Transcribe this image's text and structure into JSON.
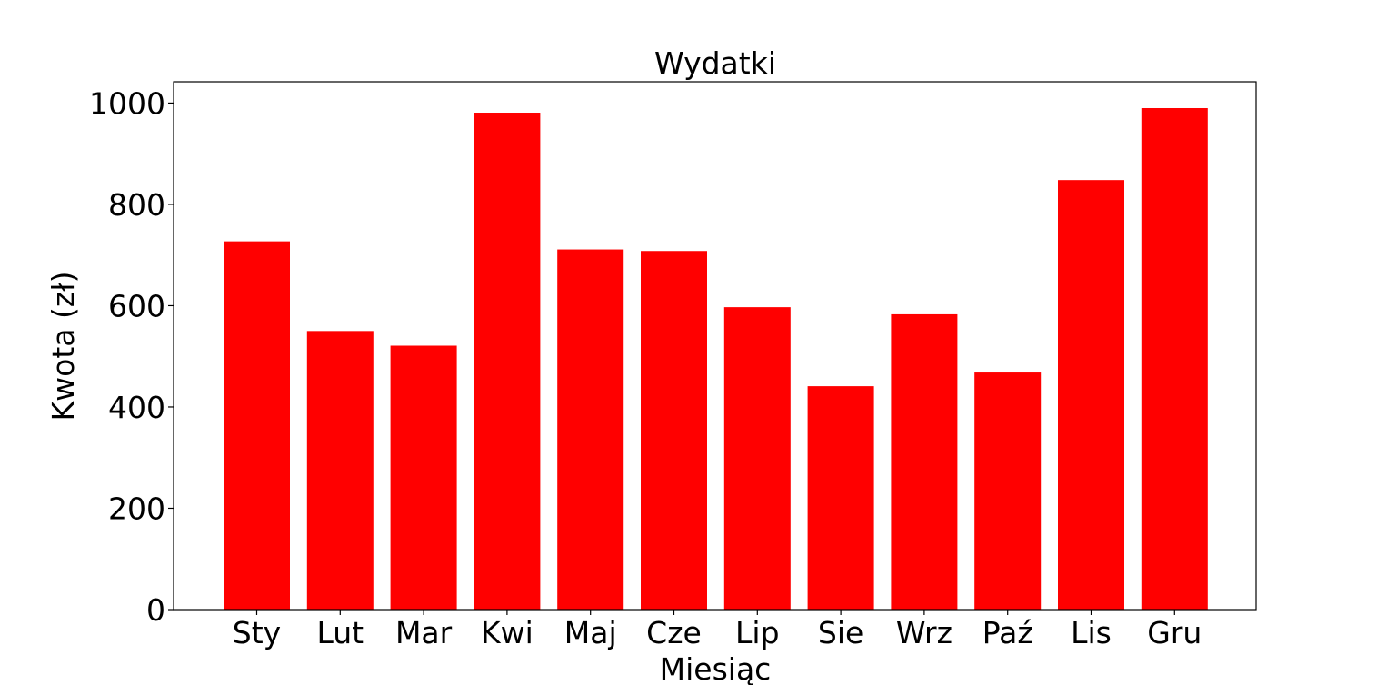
{
  "chart_data": {
    "type": "bar",
    "title": "Wydatki",
    "xlabel": "Miesiąc",
    "ylabel": "Kwota (zł)",
    "categories": [
      "Sty",
      "Lut",
      "Mar",
      "Kwi",
      "Maj",
      "Cze",
      "Lip",
      "Sie",
      "Wrz",
      "Paź",
      "Lis",
      "Gru"
    ],
    "values": [
      727,
      550,
      521,
      981,
      711,
      708,
      597,
      441,
      583,
      468,
      848,
      990
    ],
    "ylim": [
      0,
      1000
    ],
    "yticks": [
      0,
      200,
      400,
      600,
      800,
      1000
    ],
    "bar_color": "#ff0000",
    "grid": false,
    "legend": "none"
  }
}
